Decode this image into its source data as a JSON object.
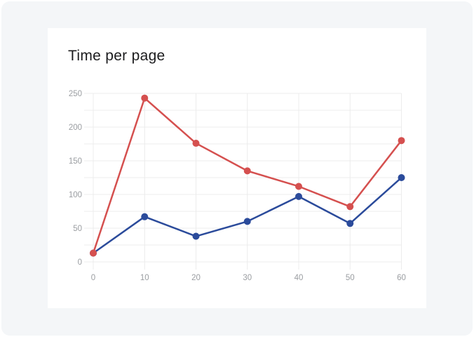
{
  "window": {
    "background": "#ffffff",
    "panel_background": "#f4f6f8"
  },
  "card": {
    "background": "#ffffff",
    "title": "Time per page"
  },
  "chart_data": {
    "type": "line",
    "title": "Time per page",
    "x": [
      0,
      10,
      20,
      30,
      40,
      50,
      60
    ],
    "series": [
      {
        "name": "blue-series",
        "color": "#2b4b9b",
        "values": [
          13,
          67,
          38,
          60,
          97,
          57,
          125
        ]
      },
      {
        "name": "red-series",
        "color": "#d5504f",
        "values": [
          13,
          243,
          176,
          135,
          112,
          82,
          180
        ]
      }
    ],
    "xlabel": "",
    "ylabel": "",
    "xlim": [
      0,
      60
    ],
    "ylim": [
      0,
      250
    ],
    "x_ticks": [
      0,
      10,
      20,
      30,
      40,
      50,
      60
    ],
    "y_ticks": [
      0,
      50,
      100,
      150,
      200,
      250
    ],
    "y_minor_step": 25,
    "grid": "on",
    "legend": "none",
    "grid_color": "#ececec",
    "tick_label_color": "#9a9da1"
  }
}
